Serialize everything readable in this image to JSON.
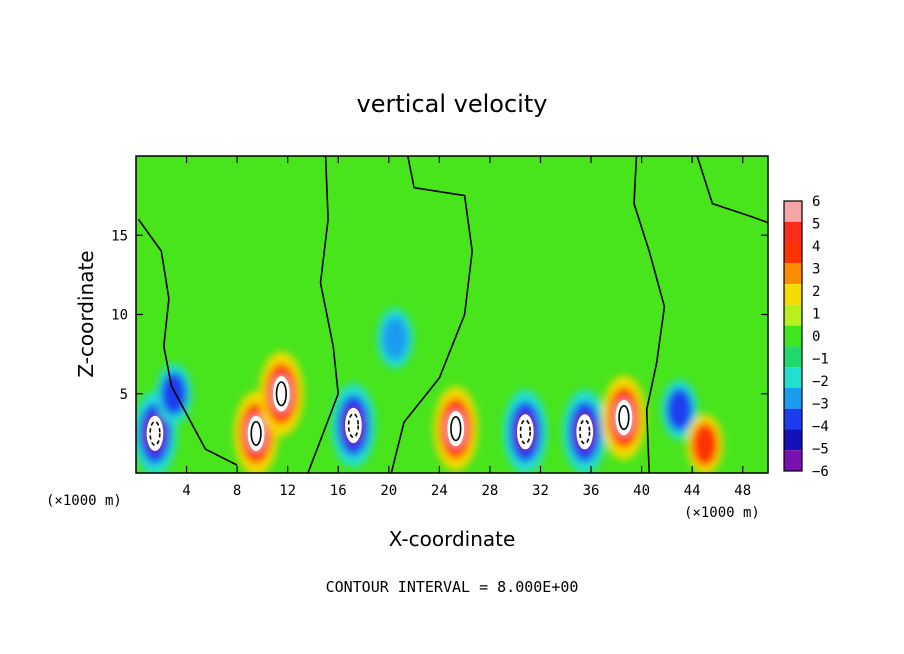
{
  "chart_data": {
    "type": "heatmap",
    "title": "vertical velocity",
    "xlabel": "X-coordinate",
    "ylabel": "Z-coordinate",
    "x_unit_left": "(×1000 m)",
    "x_unit_right": "(×1000 m)",
    "xlim": [
      0,
      50
    ],
    "ylim": [
      0,
      20
    ],
    "xticks": [
      4,
      8,
      12,
      16,
      20,
      24,
      28,
      32,
      36,
      40,
      44,
      48
    ],
    "yticks": [
      5,
      10,
      15
    ],
    "xtick_labels": [
      "4",
      "8",
      "12",
      "16",
      "20",
      "24",
      "28",
      "32",
      "36",
      "40",
      "44",
      "48"
    ],
    "ytick_labels": [
      "5",
      "10",
      "15"
    ],
    "colorbar": {
      "levels": [
        6,
        5,
        4,
        3,
        2,
        1,
        0,
        -1,
        -2,
        -3,
        -4,
        -5,
        -6
      ],
      "labels": [
        "6",
        "5",
        "4",
        "3",
        "2",
        "1",
        "0",
        "−1",
        "−2",
        "−3",
        "−4",
        "−5",
        "−6"
      ],
      "colors": [
        "#f4a6a6",
        "#ff2a1a",
        "#ff3300",
        "#ff8c00",
        "#f5dc00",
        "#b9ef1e",
        "#3ee61c",
        "#22d86a",
        "#22e0d0",
        "#1a9cf0",
        "#1c3cf0",
        "#1510b8",
        "#7a10b0"
      ]
    },
    "contour_interval_text": "CONTOUR INTERVAL = 8.000E+00",
    "features": [
      {
        "x": 1.5,
        "z": 2.5,
        "w": -8
      },
      {
        "x": 9.5,
        "z": 2.5,
        "w": 8
      },
      {
        "x": 11.5,
        "z": 5.0,
        "w": 7
      },
      {
        "x": 17.2,
        "z": 3.0,
        "w": -7
      },
      {
        "x": 25.3,
        "z": 2.8,
        "w": 8
      },
      {
        "x": 30.8,
        "z": 2.6,
        "w": -7
      },
      {
        "x": 35.5,
        "z": 2.6,
        "w": -7
      },
      {
        "x": 38.6,
        "z": 3.5,
        "w": 8
      },
      {
        "x": 43.0,
        "z": 4.0,
        "w": -4
      },
      {
        "x": 45.0,
        "z": 1.8,
        "w": 4
      },
      {
        "x": 20.5,
        "z": 8.5,
        "w": -3
      },
      {
        "x": 3.0,
        "z": 5.0,
        "w": -4
      }
    ]
  }
}
